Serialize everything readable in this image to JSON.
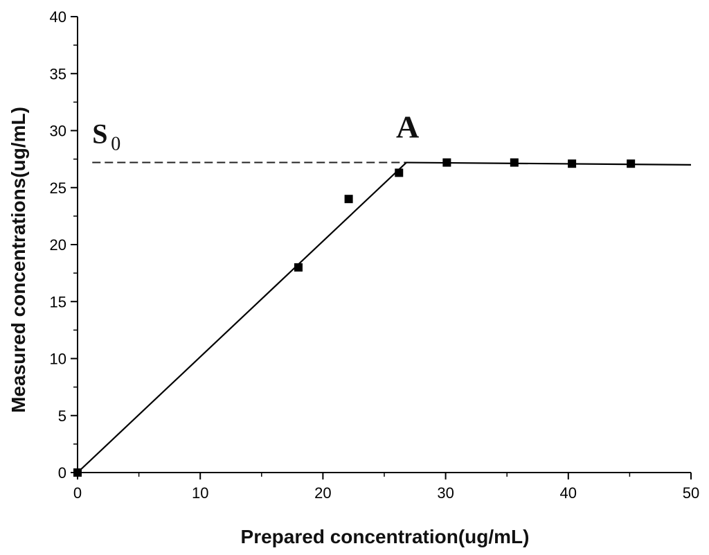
{
  "chart_data": {
    "type": "scatter",
    "title": "",
    "xlabel": "Prepared concentration(ug/mL)",
    "ylabel": "Measured concentrations(ug/mL)",
    "xlim": [
      0,
      50
    ],
    "ylim": [
      0,
      40
    ],
    "x_ticks": [
      "0",
      "10",
      "20",
      "30",
      "40",
      "50"
    ],
    "y_ticks": [
      "0",
      "5",
      "10",
      "15",
      "20",
      "25",
      "30",
      "35",
      "40"
    ],
    "grid": false,
    "series": [
      {
        "marker": "square",
        "x": [
          0,
          18,
          22.1,
          26.2,
          30.1,
          35.6,
          40.3,
          45.1
        ],
        "y": [
          0,
          18,
          24,
          26.3,
          27.2,
          27.2,
          27.1,
          27.1
        ]
      }
    ],
    "fit_lines": [
      {
        "style": "solid",
        "x": [
          0,
          26.8
        ],
        "y": [
          0,
          27.2
        ]
      },
      {
        "style": "solid",
        "x": [
          26.8,
          50
        ],
        "y": [
          27.2,
          27.0
        ]
      }
    ],
    "reference_line": {
      "style": "dashed",
      "x": [
        1.2,
        26.8
      ],
      "y": [
        27.2,
        27.2
      ]
    },
    "annotations": {
      "A": {
        "text": "A",
        "x": 26.9,
        "y": 29.4
      },
      "S0": {
        "text": "S",
        "sub": "0",
        "x": 1.2,
        "y": 28.9
      }
    }
  }
}
